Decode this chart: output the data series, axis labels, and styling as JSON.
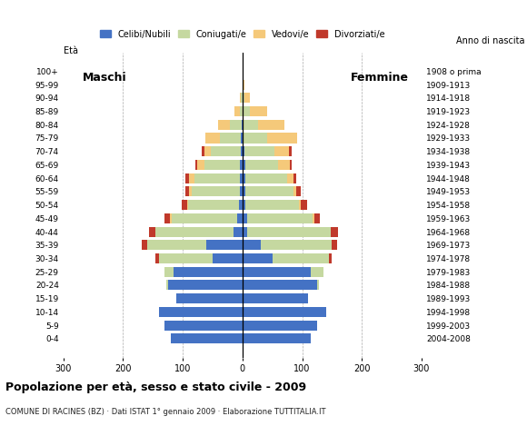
{
  "age_groups": [
    "0-4",
    "5-9",
    "10-14",
    "15-19",
    "20-24",
    "25-29",
    "30-34",
    "35-39",
    "40-44",
    "45-49",
    "50-54",
    "55-59",
    "60-64",
    "65-69",
    "70-74",
    "75-79",
    "80-84",
    "85-89",
    "90-94",
    "95-99",
    "100+"
  ],
  "birth_years": [
    "2004-2008",
    "1999-2003",
    "1994-1998",
    "1989-1993",
    "1984-1988",
    "1979-1983",
    "1974-1978",
    "1969-1973",
    "1964-1968",
    "1959-1963",
    "1954-1958",
    "1949-1953",
    "1944-1948",
    "1939-1943",
    "1934-1938",
    "1929-1933",
    "1924-1928",
    "1919-1923",
    "1914-1918",
    "1909-1913",
    "1908 o prima"
  ],
  "males": {
    "celibi": [
      120,
      130,
      140,
      110,
      125,
      115,
      50,
      60,
      15,
      9,
      6,
      5,
      5,
      4,
      3,
      2,
      1,
      0,
      0,
      0,
      0
    ],
    "coniugati": [
      0,
      0,
      0,
      0,
      2,
      15,
      90,
      100,
      130,
      110,
      85,
      80,
      75,
      60,
      50,
      35,
      20,
      5,
      2,
      0,
      0
    ],
    "vedovi": [
      0,
      0,
      0,
      0,
      0,
      0,
      0,
      0,
      0,
      2,
      2,
      5,
      10,
      12,
      10,
      25,
      20,
      8,
      2,
      0,
      0
    ],
    "divorziati": [
      0,
      0,
      0,
      0,
      0,
      0,
      5,
      8,
      12,
      10,
      8,
      5,
      5,
      3,
      5,
      0,
      0,
      0,
      0,
      0,
      0
    ]
  },
  "females": {
    "nubili": [
      115,
      125,
      140,
      110,
      125,
      115,
      50,
      30,
      8,
      8,
      5,
      5,
      5,
      5,
      3,
      2,
      1,
      0,
      0,
      0,
      0
    ],
    "coniugate": [
      0,
      0,
      0,
      0,
      3,
      20,
      95,
      120,
      140,
      110,
      90,
      80,
      70,
      55,
      50,
      40,
      25,
      12,
      4,
      2,
      0
    ],
    "vedove": [
      0,
      0,
      0,
      0,
      0,
      0,
      0,
      0,
      0,
      2,
      3,
      5,
      10,
      20,
      25,
      50,
      45,
      30,
      8,
      2,
      0
    ],
    "divorziate": [
      0,
      0,
      0,
      0,
      0,
      0,
      5,
      8,
      12,
      10,
      10,
      8,
      5,
      3,
      5,
      0,
      0,
      0,
      0,
      0,
      0
    ]
  },
  "colors": {
    "celibi": "#4472c4",
    "coniugati": "#c5d8a0",
    "vedovi": "#f5c97a",
    "divorziati": "#c0392b"
  },
  "xlim": [
    -300,
    300
  ],
  "xticks": [
    -300,
    -200,
    -100,
    0,
    100,
    200,
    300
  ],
  "xticklabels": [
    "300",
    "200",
    "100",
    "0",
    "100",
    "200",
    "300"
  ],
  "title": "Popolazione per età, sesso e stato civile - 2009",
  "subtitle": "COMUNE DI RACINES (BZ) · Dati ISTAT 1° gennaio 2009 · Elaborazione TUTTITALIA.IT",
  "ylabel_left": "Età",
  "ylabel_right": "Anno di nascita",
  "label_maschi": "Maschi",
  "label_femmine": "Femmine",
  "legend_labels": [
    "Celibi/Nubili",
    "Coniugati/e",
    "Vedovi/e",
    "Divorziati/e"
  ],
  "background_color": "#ffffff",
  "bar_height": 0.75
}
